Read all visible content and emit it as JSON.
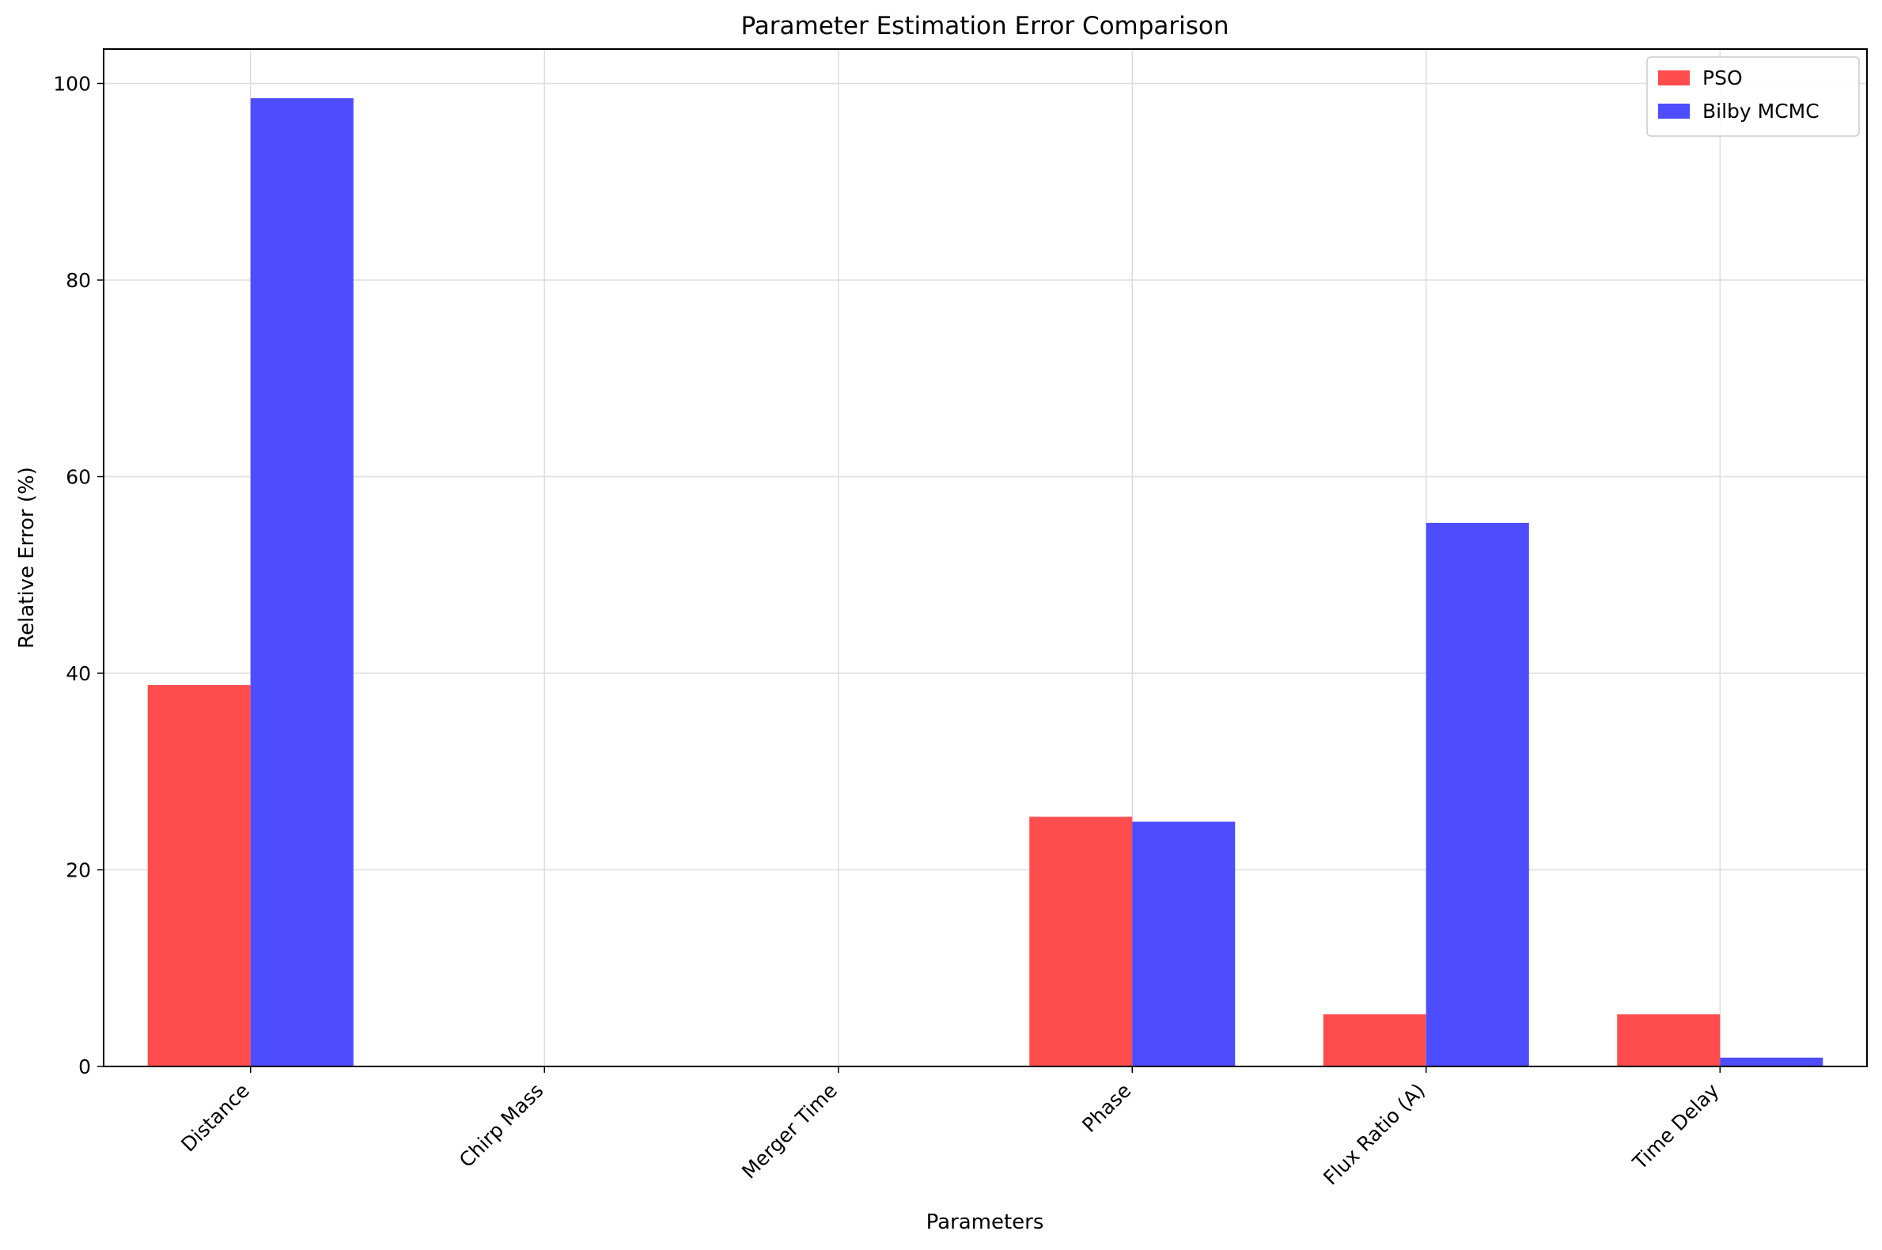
{
  "chart_data": {
    "type": "bar",
    "title": "Parameter Estimation Error Comparison",
    "xlabel": "Parameters",
    "ylabel": "Relative Error (%)",
    "categories": [
      "Distance",
      "Chirp Mass",
      "Merger Time",
      "Phase",
      "Flux Ratio (A)",
      "Time Delay"
    ],
    "series": [
      {
        "name": "PSO",
        "values": [
          38.8,
          0,
          0,
          25.4,
          5.3,
          5.3
        ],
        "color": "#ff4d4d"
      },
      {
        "name": "Bilby MCMC",
        "values": [
          98.5,
          0,
          0,
          24.9,
          55.3,
          0.9
        ],
        "color": "#4d4dff"
      }
    ],
    "ylim": [
      0,
      103.5
    ],
    "yticks": [
      0,
      20,
      40,
      60,
      80,
      100
    ],
    "grid": true,
    "legend_position": "top-right"
  }
}
